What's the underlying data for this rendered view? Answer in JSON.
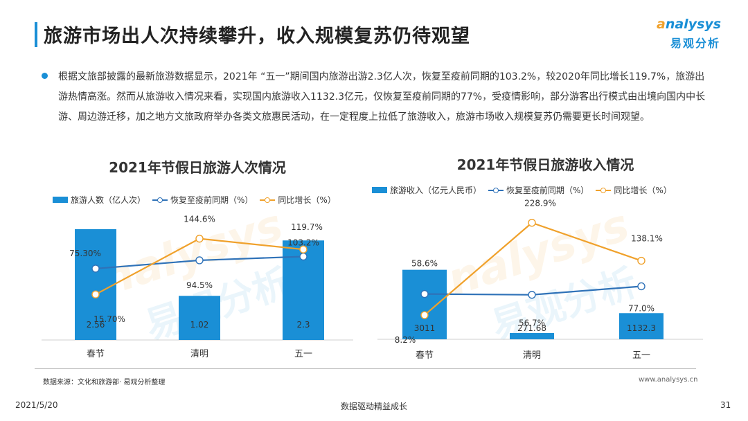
{
  "header": {
    "title": "旅游市场出人次持续攀升，收入规模复苏仍待观望",
    "logo_en_o": "a",
    "logo_en_rest": "nalysys",
    "logo_cn": "易观分析"
  },
  "body_text": "根据文旅部披露的最新旅游数据显示，2021年 “五一”期间国内旅游出游2.3亿人次，恢复至疫前同期的103.2%，较2020年同比增长119.7%，旅游出游热情高涨。然而从旅游收入情况来看，实现国内旅游收入1132.3亿元，仅恢复至疫前同期的77%，受疫情影响，部分游客出行模式由出境向国内中长游、周边游迁移，加之地方文旅政府举办各类文旅惠民活动，在一定程度上拉低了旅游收入，旅游市场收入规模复苏仍需要更长时间观望。",
  "watermark": {
    "en": "analysys",
    "cn": "易观分析"
  },
  "colors": {
    "accent": "#1a8fd6",
    "orange": "#f0a12b",
    "bar": "#1a8fd6",
    "line_blue": "#2f72b8"
  },
  "chart_data": [
    {
      "type": "bar",
      "title": "2021年节假日旅游人次情况",
      "categories": [
        "春节",
        "清明",
        "五一"
      ],
      "series": [
        {
          "name": "旅游人数（亿人次）",
          "kind": "bar",
          "values": [
            2.56,
            1.02,
            2.3
          ],
          "labels": [
            "2.56",
            "1.02",
            "2.3"
          ]
        },
        {
          "name": "恢复至疫前同期（%）",
          "kind": "line",
          "values": [
            75.3,
            94.5,
            103.2
          ],
          "labels": [
            "75.30%",
            "94.5%",
            "103.2%"
          ]
        },
        {
          "name": "同比增长（%）",
          "kind": "line",
          "values": [
            15.7,
            144.6,
            119.7
          ],
          "labels": [
            "15.70%",
            "144.6%",
            "119.7%"
          ]
        }
      ]
    },
    {
      "type": "bar",
      "title": "2021年节假日旅游收入情况",
      "categories": [
        "春节",
        "清明",
        "五一"
      ],
      "series": [
        {
          "name": "旅游收入（亿元人民币）",
          "kind": "bar",
          "values": [
            3011,
            271.68,
            1132.3
          ],
          "labels": [
            "3011",
            "271.68",
            "1132.3"
          ]
        },
        {
          "name": "恢复至疫前同期（%）",
          "kind": "line",
          "values": [
            58.6,
            56.7,
            77.0
          ],
          "labels": [
            "58.6%",
            "56.7%",
            "77.0%"
          ]
        },
        {
          "name": "同比增长（%）",
          "kind": "line",
          "values": [
            8.2,
            228.9,
            138.1
          ],
          "labels": [
            "8.2%",
            "228.9%",
            "138.1%"
          ]
        }
      ]
    }
  ],
  "footer": {
    "source": "数据来源：文化和旅游部· 易观分析整理",
    "site": "www.analysys.cn",
    "date": "2021/5/20",
    "slogan": "数据驱动精益成长",
    "page": "31"
  }
}
